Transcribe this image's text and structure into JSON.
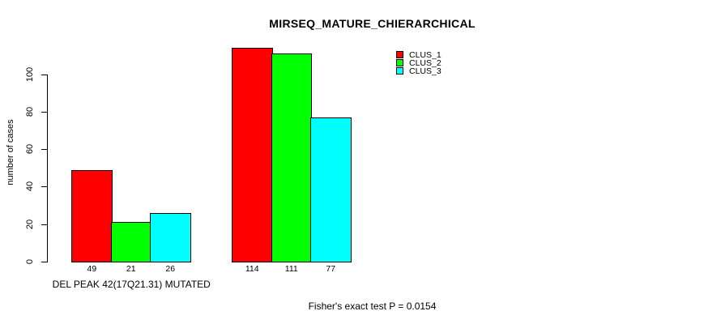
{
  "chart_data": {
    "type": "bar",
    "title": "MIRSEQ_MATURE_CHIERARCHICAL",
    "ylabel": "number of cases",
    "xlabel": "",
    "footnote": "Fisher's exact test P = 0.0154",
    "categories": [
      "DEL PEAK 42(17Q21.31) MUTATED",
      ""
    ],
    "series": [
      {
        "name": "CLUS_1",
        "color": "#ff0000",
        "values": [
          49,
          114
        ]
      },
      {
        "name": "CLUS_2",
        "color": "#00ff00",
        "values": [
          21,
          111
        ]
      },
      {
        "name": "CLUS_3",
        "color": "#00ffff",
        "values": [
          26,
          77
        ]
      }
    ],
    "yticks": [
      0,
      20,
      40,
      60,
      80,
      100
    ],
    "ylim": [
      0,
      100
    ],
    "grid": false,
    "grouped": true,
    "bar_value_labels_shown": true,
    "legend_position": "top-right",
    "background": "#ffffff",
    "bar_outline_color": "#000000"
  }
}
